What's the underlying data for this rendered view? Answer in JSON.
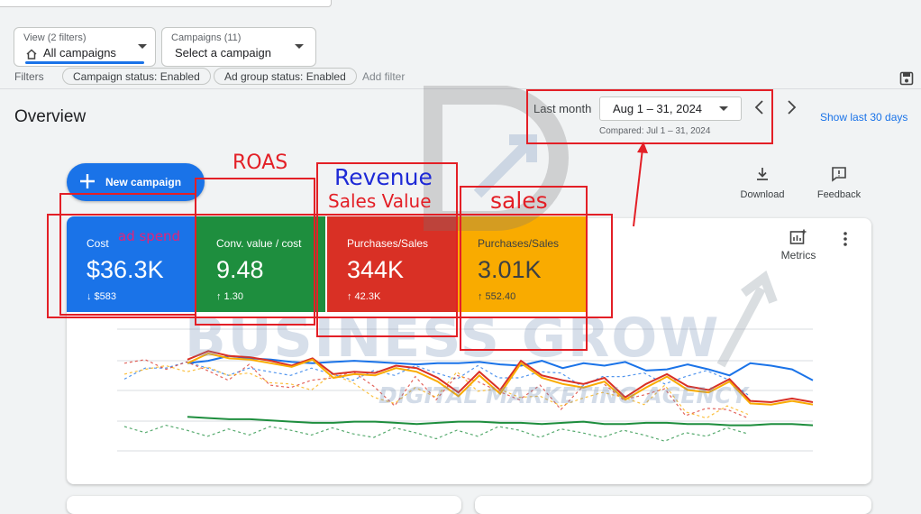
{
  "view": {
    "caption": "View (2 filters)",
    "value": "All campaigns"
  },
  "campaigns": {
    "caption": "Campaigns (11)",
    "value": "Select a campaign"
  },
  "filters": {
    "label": "Filters",
    "chips": [
      "Campaign status: Enabled",
      "Ad group status: Enabled"
    ],
    "add": "Add filter"
  },
  "overview": {
    "title": "Overview"
  },
  "date": {
    "label": "Last month",
    "range": "Aug 1 – 31, 2024",
    "compared": "Compared: Jul 1 – 31, 2024",
    "show_last": "Show last 30 days"
  },
  "new_campaign": {
    "label": "New campaign"
  },
  "actions": {
    "download": "Download",
    "feedback": "Feedback",
    "metrics": "Metrics"
  },
  "tiles": [
    {
      "label": "Cost",
      "value": "$36.3K",
      "change": "↓ $583",
      "color": "#1a73e8"
    },
    {
      "label": "Conv. value / cost",
      "value": "9.48",
      "change": "↑ 1.30",
      "color": "#1e8e3e"
    },
    {
      "label": "Purchases/Sales",
      "value": "344K",
      "change": "↑ 42.3K",
      "color": "#d93025"
    },
    {
      "label": "Purchases/Sales",
      "value": "3.01K",
      "change": "↑ 552.40",
      "color": "#f9ab00"
    }
  ],
  "annotations": {
    "roas": "ROAS",
    "revenue": "Revenue",
    "sales_value": "Sales Value",
    "sales": "sales",
    "ad_spend": "ad spend"
  },
  "watermark": {
    "line1": "BUSINESS GROW",
    "line2": "DIGITAL MARKETING AGENCY"
  },
  "chart_data": {
    "type": "line",
    "x": [
      1,
      2,
      3,
      4,
      5,
      6,
      7,
      8,
      9,
      10,
      11,
      12,
      13,
      14,
      15,
      16,
      17,
      18,
      19,
      20,
      21,
      22,
      23,
      24,
      25,
      26,
      27,
      28,
      29,
      30,
      31
    ],
    "series": [
      {
        "color": "#1a73e8",
        "values": [
          72,
          74,
          78,
          76,
          75,
          73,
          72,
          73,
          74,
          73,
          72,
          71,
          72,
          72,
          73,
          71,
          70,
          74,
          68,
          72,
          70,
          73,
          66,
          67,
          71,
          67,
          62,
          72,
          70,
          67,
          58
        ]
      },
      {
        "color": "#1e8e3e",
        "values": [
          28,
          27,
          26,
          26,
          25,
          24,
          23,
          23,
          24,
          24,
          23,
          22,
          23,
          24,
          24,
          23,
          23,
          22,
          23,
          24,
          22,
          22,
          23,
          23,
          22,
          22,
          21,
          21,
          22,
          22,
          21
        ]
      },
      {
        "color": "#d93025",
        "values": [
          75,
          82,
          78,
          77,
          74,
          70,
          76,
          63,
          65,
          64,
          70,
          68,
          60,
          48,
          65,
          50,
          74,
          62,
          58,
          55,
          60,
          44,
          55,
          63,
          53,
          50,
          59,
          41,
          40,
          43,
          40
        ]
      },
      {
        "color": "#f9ab00",
        "values": [
          72,
          80,
          76,
          75,
          72,
          69,
          75,
          60,
          63,
          62,
          68,
          65,
          57,
          45,
          62,
          47,
          72,
          60,
          55,
          52,
          57,
          42,
          52,
          61,
          50,
          48,
          57,
          39,
          38,
          41,
          38
        ]
      }
    ]
  }
}
